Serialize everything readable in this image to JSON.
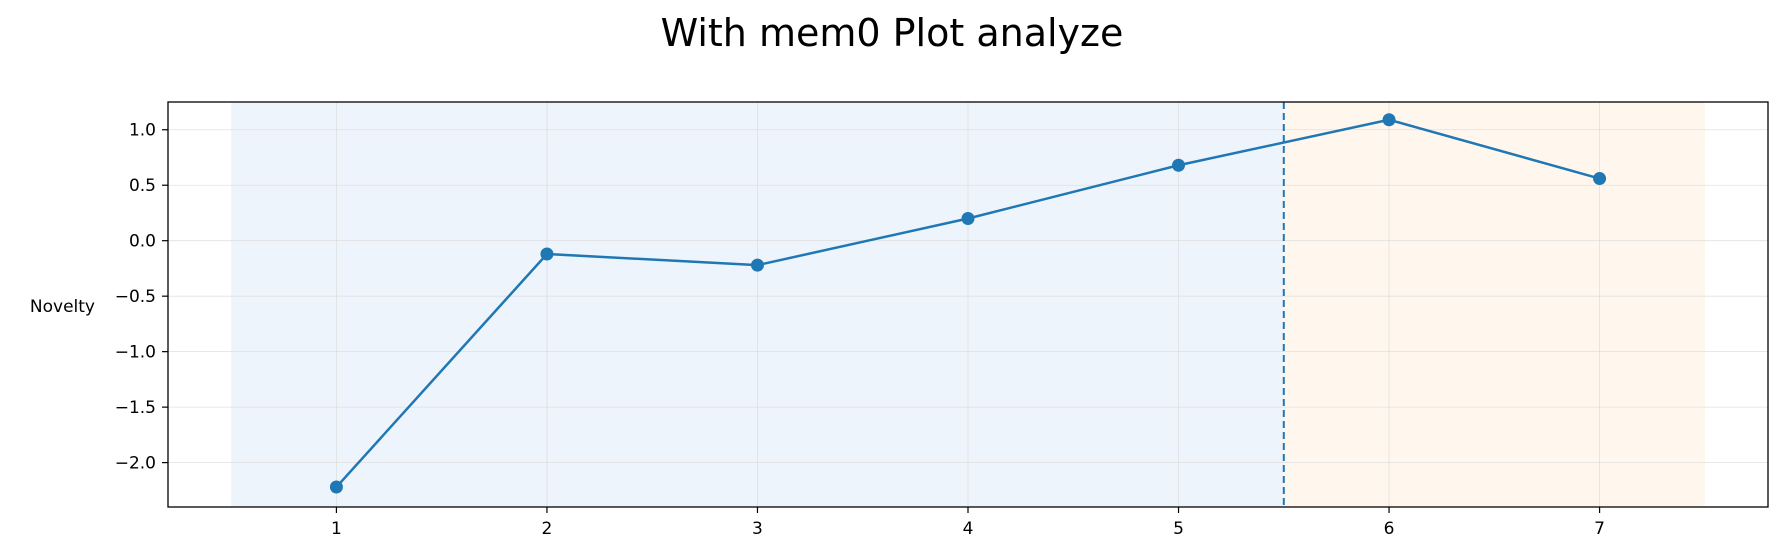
{
  "chart_data": {
    "type": "line",
    "title": "With mem0 Plot analyze",
    "xlabel": "",
    "ylabel": "Novelty",
    "xlim": [
      0.2,
      7.8
    ],
    "ylim": [
      -2.4,
      1.25
    ],
    "x_ticks": [
      1,
      2,
      3,
      4,
      5,
      6,
      7
    ],
    "x_tick_labels": [
      "1",
      "2",
      "3",
      "4",
      "5",
      "6",
      "7"
    ],
    "y_ticks": [
      1.0,
      0.5,
      0.0,
      -0.5,
      -1.0,
      -1.5,
      -2.0
    ],
    "y_tick_labels": [
      "1.0",
      "0.5",
      "0.0",
      "−0.5",
      "−1.0",
      "−1.5",
      "−2.0"
    ],
    "grid": true,
    "series": [
      {
        "x": [
          1,
          2,
          3,
          4,
          5,
          6,
          7
        ],
        "values": [
          -2.22,
          -0.12,
          -0.22,
          0.2,
          0.68,
          1.09,
          0.56
        ],
        "color": "#1f77b4"
      }
    ],
    "shaded_regions": [
      {
        "x_start": 0.5,
        "x_end": 5.5,
        "color": "#eef4fc"
      },
      {
        "x_start": 5.5,
        "x_end": 7.5,
        "color": "#fff7ee"
      }
    ],
    "vertical_line": {
      "x": 5.5,
      "style": "dashed",
      "color": "#1f77b4"
    }
  }
}
